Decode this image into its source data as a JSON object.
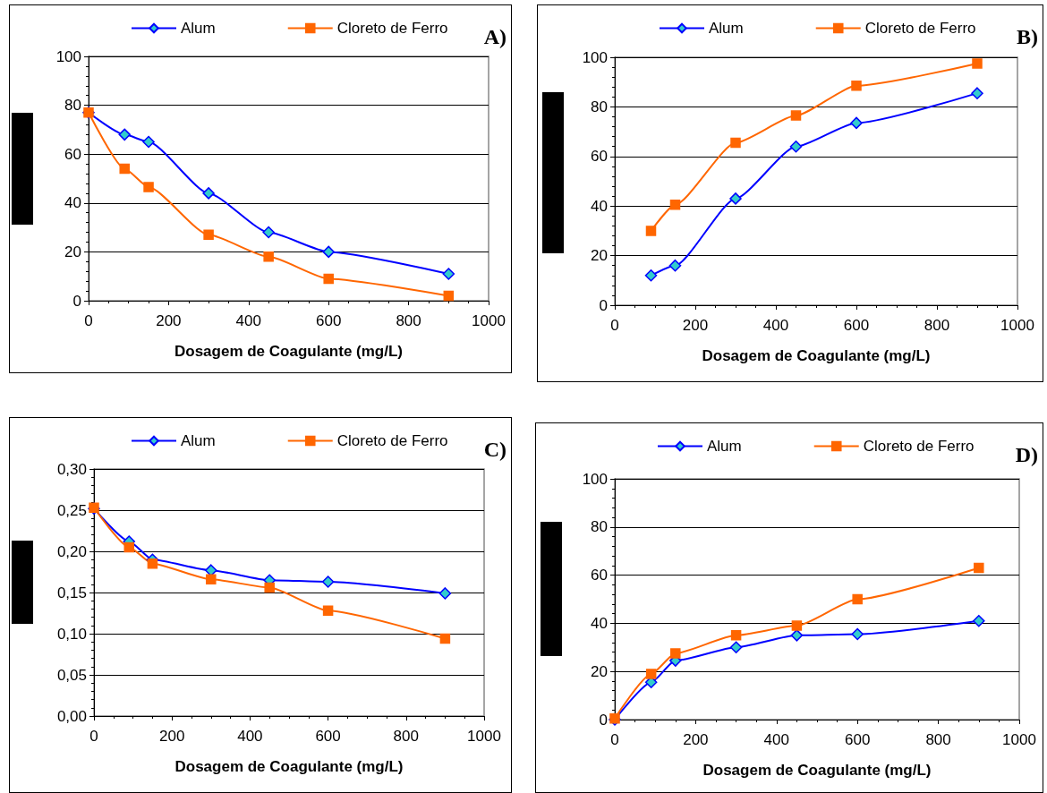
{
  "chart_data": [
    {
      "type": "line",
      "title": "A)",
      "xlabel": "Dosagem de Coagulante (mg/L)",
      "x": [
        0,
        90,
        150,
        300,
        450,
        600,
        900
      ],
      "xlim": [
        0,
        1000
      ],
      "xticks": [
        0,
        200,
        400,
        600,
        800,
        1000
      ],
      "ylim": [
        0,
        100
      ],
      "yticks": [
        0,
        20,
        40,
        60,
        80,
        100
      ],
      "grid": "y",
      "legend": "top",
      "series": [
        {
          "name": "Alum",
          "color": "#0000ff",
          "marker": "diamond",
          "values": [
            77,
            68,
            65,
            44,
            28,
            20,
            11
          ]
        },
        {
          "name": "Cloreto de Ferro",
          "color": "#ff6600",
          "marker": "square",
          "values": [
            77,
            54,
            46.5,
            27,
            18,
            9,
            2
          ]
        }
      ]
    },
    {
      "type": "line",
      "title": "B)",
      "xlabel": "Dosagem de Coagulante (mg/L)",
      "x": [
        90,
        150,
        300,
        450,
        600,
        900
      ],
      "xlim": [
        0,
        1000
      ],
      "xticks": [
        0,
        200,
        400,
        600,
        800,
        1000
      ],
      "ylim": [
        0,
        100
      ],
      "yticks": [
        0,
        20,
        40,
        60,
        80,
        100
      ],
      "grid": "y",
      "legend": "top",
      "series": [
        {
          "name": "Alum",
          "color": "#0000ff",
          "marker": "diamond",
          "values": [
            12,
            16,
            43,
            64,
            73.5,
            85.5
          ]
        },
        {
          "name": "Cloreto de Ferro",
          "color": "#ff6600",
          "marker": "square",
          "values": [
            30,
            40.5,
            65.5,
            76.5,
            88.5,
            97.5
          ]
        }
      ]
    },
    {
      "type": "line",
      "title": "C)",
      "xlabel": "Dosagem de Coagulante (mg/L)",
      "x": [
        0,
        90,
        150,
        300,
        450,
        600,
        900
      ],
      "xlim": [
        0,
        1000
      ],
      "xticks": [
        0,
        200,
        400,
        600,
        800,
        1000
      ],
      "ylim": [
        0,
        0.3
      ],
      "yticks": [
        {
          "value": 0,
          "label": "0,00"
        },
        {
          "value": 0.05,
          "label": "0,05"
        },
        {
          "value": 0.1,
          "label": "0,10"
        },
        {
          "value": 0.15,
          "label": "0,15"
        },
        {
          "value": 0.2,
          "label": "0,20"
        },
        {
          "value": 0.25,
          "label": "0,25"
        },
        {
          "value": 0.3,
          "label": "0,30"
        }
      ],
      "grid": "y",
      "legend": "top",
      "series": [
        {
          "name": "Alum",
          "color": "#0000ff",
          "marker": "diamond",
          "values": [
            0.252,
            0.212,
            0.19,
            0.177,
            0.165,
            0.163,
            0.149
          ]
        },
        {
          "name": "Cloreto de Ferro",
          "color": "#ff6600",
          "marker": "square",
          "values": [
            0.253,
            0.205,
            0.185,
            0.166,
            0.156,
            0.128,
            0.094
          ]
        }
      ]
    },
    {
      "type": "line",
      "title": "D)",
      "xlabel": "Dosagem de Coagulante (mg/L)",
      "x": [
        0,
        90,
        150,
        300,
        450,
        600,
        900
      ],
      "xlim": [
        0,
        1000
      ],
      "xticks": [
        0,
        200,
        400,
        600,
        800,
        1000
      ],
      "ylim": [
        0,
        100
      ],
      "yticks": [
        0,
        20,
        40,
        60,
        80,
        100
      ],
      "grid": "y",
      "legend": "top",
      "series": [
        {
          "name": "Alum",
          "color": "#0000ff",
          "marker": "diamond",
          "values": [
            0,
            15.5,
            24.5,
            30,
            35,
            35.5,
            41
          ]
        },
        {
          "name": "Cloreto de Ferro",
          "color": "#ff6600",
          "marker": "square",
          "values": [
            0.5,
            19,
            27.5,
            35,
            39,
            50,
            63
          ]
        }
      ]
    }
  ]
}
